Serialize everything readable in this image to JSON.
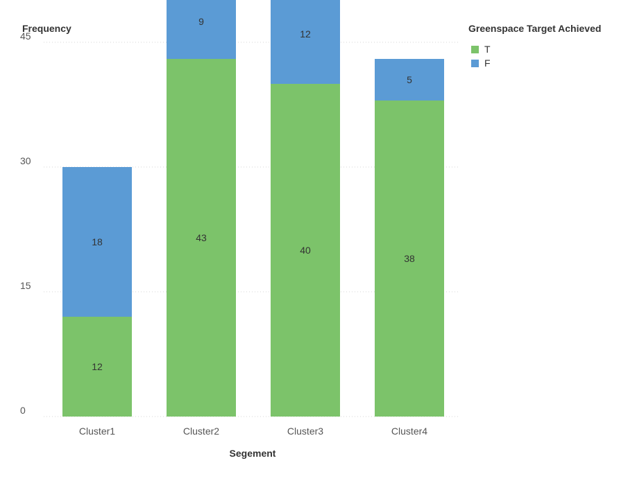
{
  "chart_data": {
    "type": "bar",
    "stacked": true,
    "ylabel": "Frequency",
    "xlabel": "Segement",
    "categories": [
      "Cluster1",
      "Cluster2",
      "Cluster3",
      "Cluster4"
    ],
    "ylim": [
      0,
      45
    ],
    "yticks": [
      0,
      15,
      30,
      45
    ],
    "grid": true,
    "legend_title": "Greenspace Target Achieved",
    "legend_position": "top-right",
    "series": [
      {
        "name": "T",
        "color": "#7cc36a",
        "values": [
          12,
          43,
          40,
          38
        ]
      },
      {
        "name": "F",
        "color": "#5b9bd5",
        "values": [
          18,
          9,
          12,
          5
        ]
      }
    ]
  }
}
